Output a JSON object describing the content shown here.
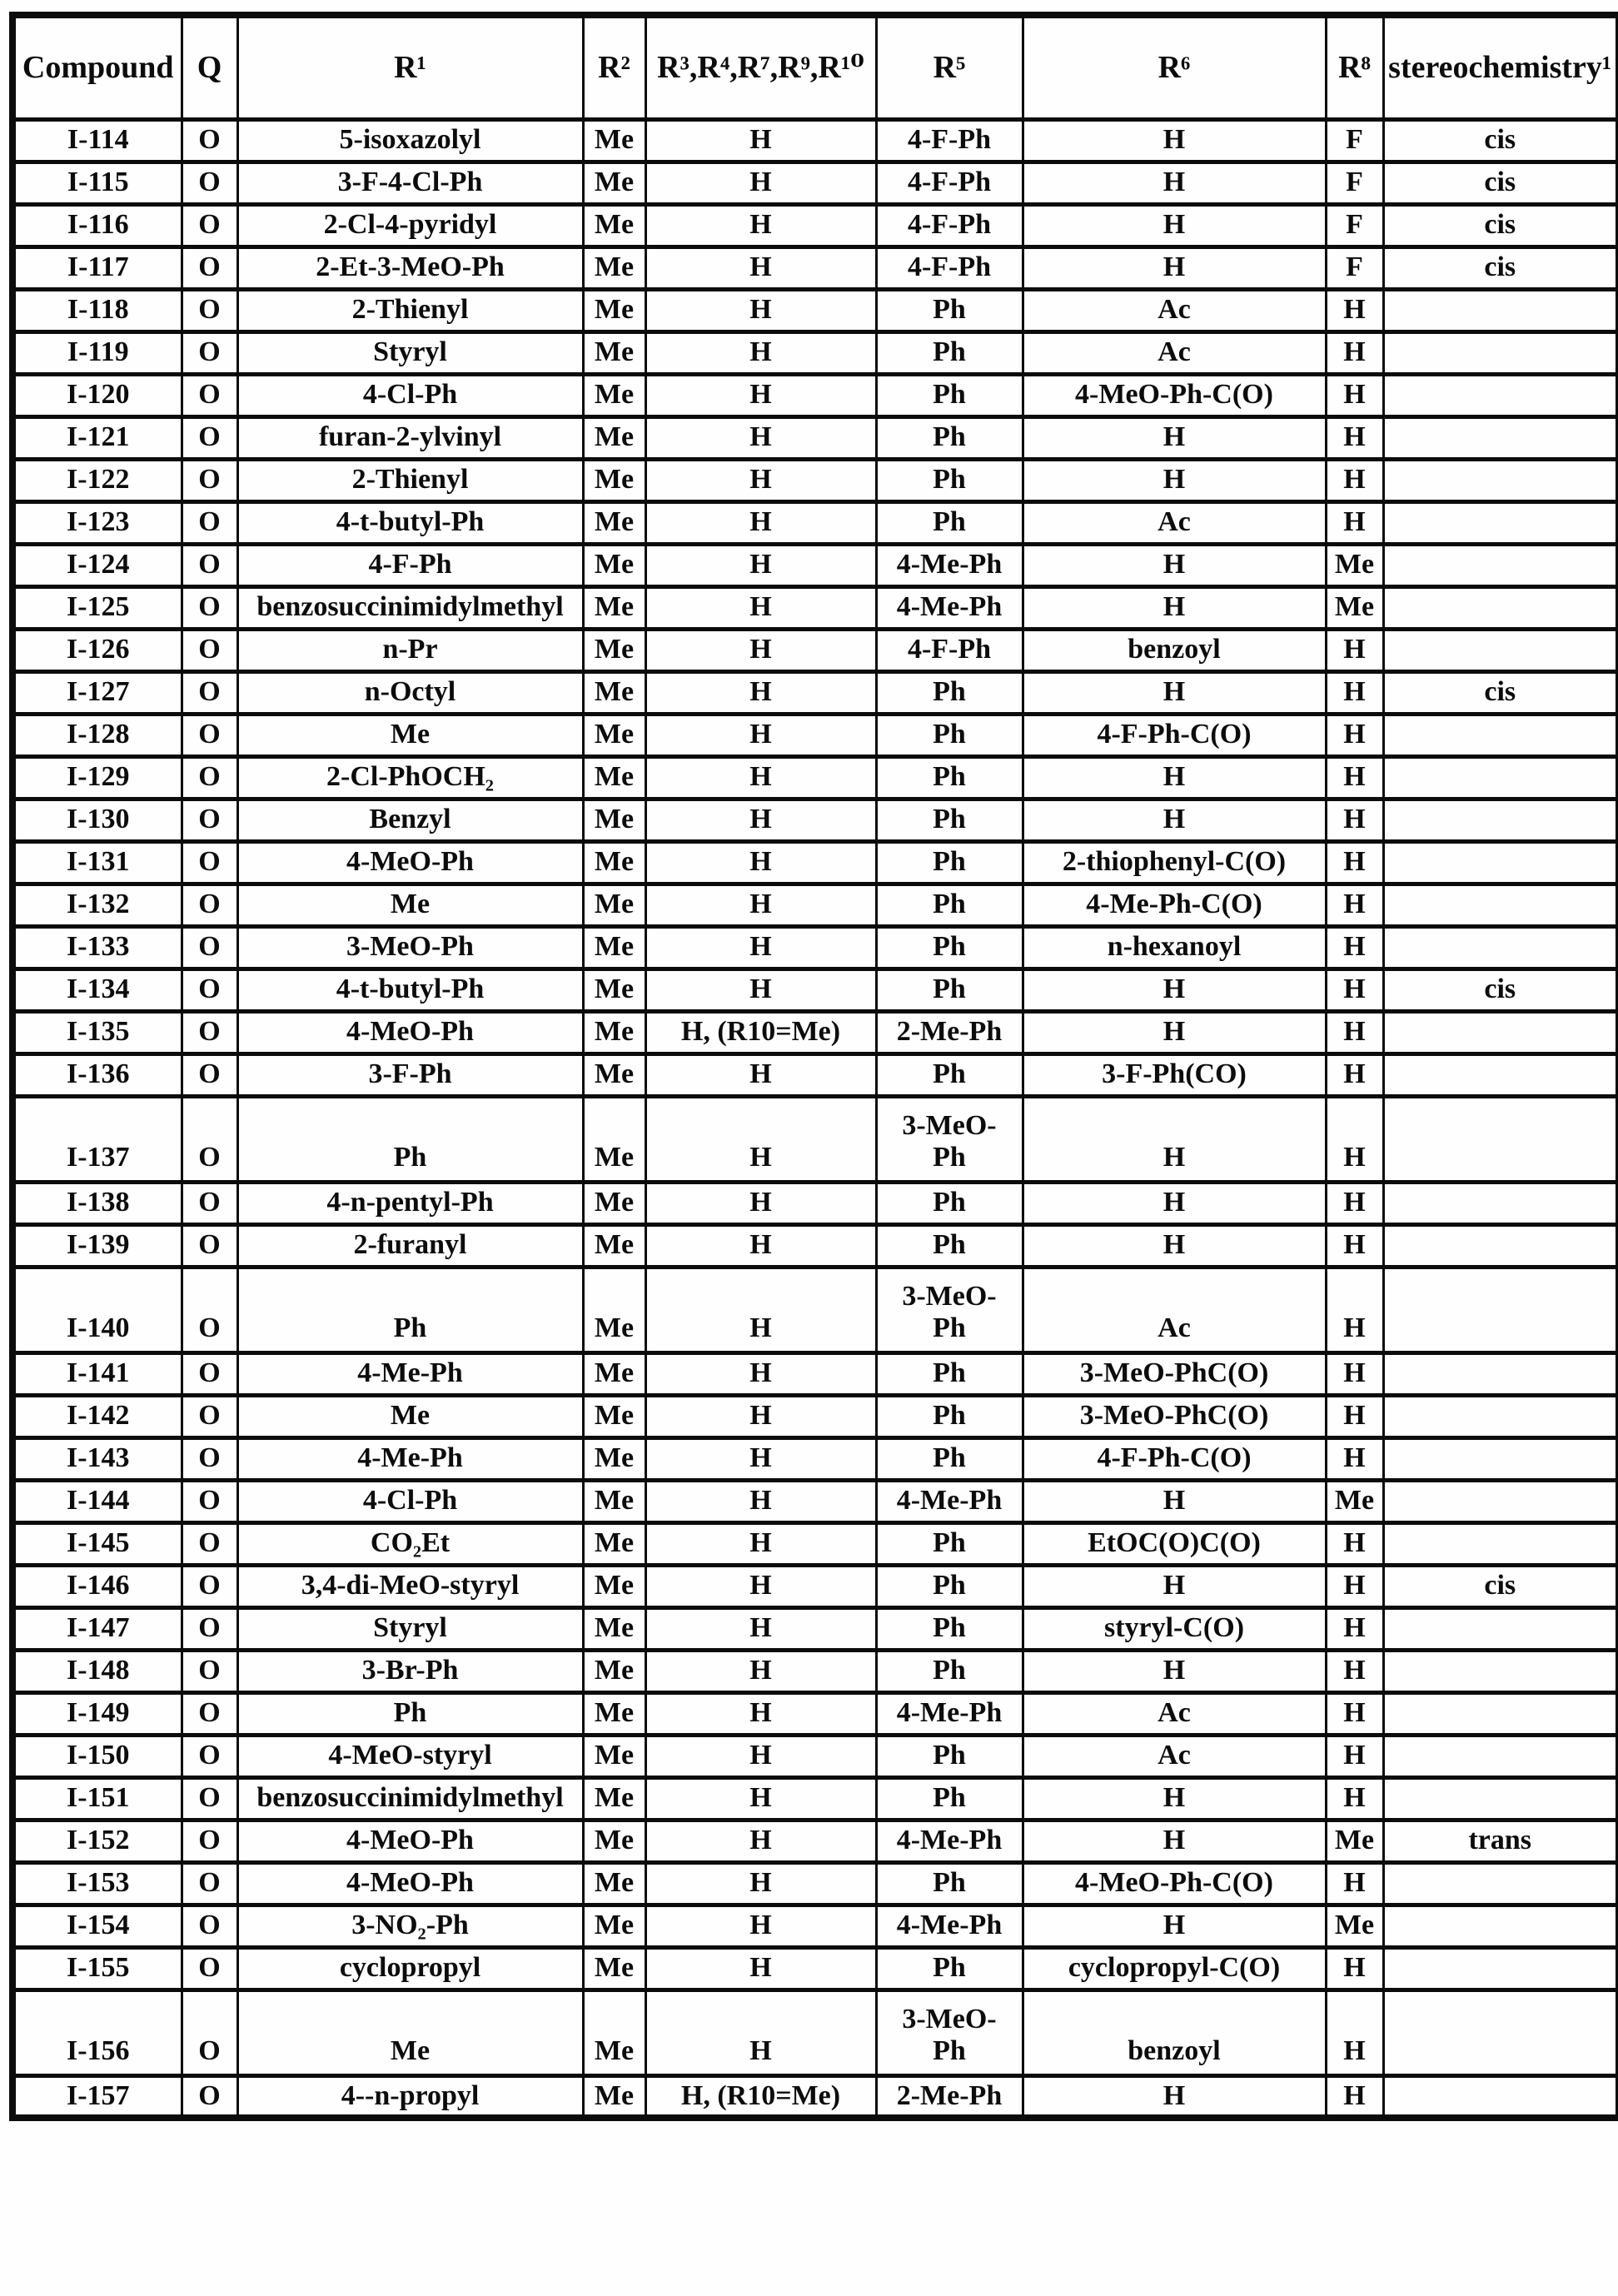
{
  "page": {
    "background_color": "#fefefe",
    "ink_color": "#0c0c0c"
  },
  "table": {
    "columns": [
      {
        "key": "compound",
        "label": "Compound"
      },
      {
        "key": "q",
        "label": "Q"
      },
      {
        "key": "r1",
        "label": "R¹"
      },
      {
        "key": "r2",
        "label": "R²"
      },
      {
        "key": "r3-r4-r7-r9-r10",
        "label": "R³,R⁴,R⁷,R⁹,R¹⁰"
      },
      {
        "key": "r5",
        "label": "R⁵"
      },
      {
        "key": "r6",
        "label": "R⁶"
      },
      {
        "key": "r8",
        "label": "R⁸"
      },
      {
        "key": "stereochemistry",
        "label": "stereochemistry¹"
      }
    ],
    "rows": [
      {
        "tall": false,
        "cells": [
          "I-114",
          "O",
          "5-isoxazolyl",
          "Me",
          "H",
          "4-F-Ph",
          "H",
          "F",
          "cis"
        ]
      },
      {
        "tall": false,
        "cells": [
          "I-115",
          "O",
          "3-F-4-Cl-Ph",
          "Me",
          "H",
          "4-F-Ph",
          "H",
          "F",
          "cis"
        ]
      },
      {
        "tall": false,
        "cells": [
          "I-116",
          "O",
          "2-Cl-4-pyridyl",
          "Me",
          "H",
          "4-F-Ph",
          "H",
          "F",
          "cis"
        ]
      },
      {
        "tall": false,
        "cells": [
          "I-117",
          "O",
          "2-Et-3-MeO-Ph",
          "Me",
          "H",
          "4-F-Ph",
          "H",
          "F",
          "cis"
        ]
      },
      {
        "tall": false,
        "cells": [
          "I-118",
          "O",
          "2-Thienyl",
          "Me",
          "H",
          "Ph",
          "Ac",
          "H",
          ""
        ]
      },
      {
        "tall": false,
        "cells": [
          "I-119",
          "O",
          "Styryl",
          "Me",
          "H",
          "Ph",
          "Ac",
          "H",
          ""
        ]
      },
      {
        "tall": false,
        "cells": [
          "I-120",
          "O",
          "4-Cl-Ph",
          "Me",
          "H",
          "Ph",
          "4-MeO-Ph-C(O)",
          "H",
          ""
        ]
      },
      {
        "tall": false,
        "cells": [
          "I-121",
          "O",
          "furan-2-ylvinyl",
          "Me",
          "H",
          "Ph",
          "H",
          "H",
          ""
        ]
      },
      {
        "tall": false,
        "cells": [
          "I-122",
          "O",
          "2-Thienyl",
          "Me",
          "H",
          "Ph",
          "H",
          "H",
          ""
        ]
      },
      {
        "tall": false,
        "cells": [
          "I-123",
          "O",
          "4-t-butyl-Ph",
          "Me",
          "H",
          "Ph",
          "Ac",
          "H",
          ""
        ]
      },
      {
        "tall": false,
        "cells": [
          "I-124",
          "O",
          "4-F-Ph",
          "Me",
          "H",
          "4-Me-Ph",
          "H",
          "Me",
          ""
        ]
      },
      {
        "tall": false,
        "cells": [
          "I-125",
          "O",
          "benzosuccinimidylmethyl",
          "Me",
          "H",
          "4-Me-Ph",
          "H",
          "Me",
          ""
        ]
      },
      {
        "tall": false,
        "cells": [
          "I-126",
          "O",
          "n-Pr",
          "Me",
          "H",
          "4-F-Ph",
          "benzoyl",
          "H",
          ""
        ]
      },
      {
        "tall": false,
        "cells": [
          "I-127",
          "O",
          "n-Octyl",
          "Me",
          "H",
          "Ph",
          "H",
          "H",
          "cis"
        ]
      },
      {
        "tall": false,
        "cells": [
          "I-128",
          "O",
          "Me",
          "Me",
          "H",
          "Ph",
          "4-F-Ph-C(O)",
          "H",
          ""
        ]
      },
      {
        "tall": false,
        "cells": [
          "I-129",
          "O",
          "2-Cl-PhOCH₂",
          "Me",
          "H",
          "Ph",
          "H",
          "H",
          ""
        ]
      },
      {
        "tall": false,
        "cells": [
          "I-130",
          "O",
          "Benzyl",
          "Me",
          "H",
          "Ph",
          "H",
          "H",
          ""
        ]
      },
      {
        "tall": false,
        "cells": [
          "I-131",
          "O",
          "4-MeO-Ph",
          "Me",
          "H",
          "Ph",
          "2-thiophenyl-C(O)",
          "H",
          ""
        ]
      },
      {
        "tall": false,
        "cells": [
          "I-132",
          "O",
          "Me",
          "Me",
          "H",
          "Ph",
          "4-Me-Ph-C(O)",
          "H",
          ""
        ]
      },
      {
        "tall": false,
        "cells": [
          "I-133",
          "O",
          "3-MeO-Ph",
          "Me",
          "H",
          "Ph",
          "n-hexanoyl",
          "H",
          ""
        ]
      },
      {
        "tall": false,
        "cells": [
          "I-134",
          "O",
          "4-t-butyl-Ph",
          "Me",
          "H",
          "Ph",
          "H",
          "H",
          "cis"
        ]
      },
      {
        "tall": false,
        "cells": [
          "I-135",
          "O",
          "4-MeO-Ph",
          "Me",
          "H, (R10=Me)",
          "2-Me-Ph",
          "H",
          "H",
          ""
        ]
      },
      {
        "tall": false,
        "cells": [
          "I-136",
          "O",
          "3-F-Ph",
          "Me",
          "H",
          "Ph",
          "3-F-Ph(CO)",
          "H",
          ""
        ]
      },
      {
        "tall": true,
        "cells": [
          "I-137",
          "O",
          "Ph",
          "Me",
          "H",
          "3-MeO-\nPh",
          "H",
          "H",
          ""
        ]
      },
      {
        "tall": false,
        "cells": [
          "I-138",
          "O",
          "4-n-pentyl-Ph",
          "Me",
          "H",
          "Ph",
          "H",
          "H",
          ""
        ]
      },
      {
        "tall": false,
        "cells": [
          "I-139",
          "O",
          "2-furanyl",
          "Me",
          "H",
          "Ph",
          "H",
          "H",
          ""
        ]
      },
      {
        "tall": true,
        "cells": [
          "I-140",
          "O",
          "Ph",
          "Me",
          "H",
          "3-MeO-\nPh",
          "Ac",
          "H",
          ""
        ]
      },
      {
        "tall": false,
        "cells": [
          "I-141",
          "O",
          "4-Me-Ph",
          "Me",
          "H",
          "Ph",
          "3-MeO-PhC(O)",
          "H",
          ""
        ]
      },
      {
        "tall": false,
        "cells": [
          "I-142",
          "O",
          "Me",
          "Me",
          "H",
          "Ph",
          "3-MeO-PhC(O)",
          "H",
          ""
        ]
      },
      {
        "tall": false,
        "cells": [
          "I-143",
          "O",
          "4-Me-Ph",
          "Me",
          "H",
          "Ph",
          "4-F-Ph-C(O)",
          "H",
          ""
        ]
      },
      {
        "tall": false,
        "cells": [
          "I-144",
          "O",
          "4-Cl-Ph",
          "Me",
          "H",
          "4-Me-Ph",
          "H",
          "Me",
          ""
        ]
      },
      {
        "tall": false,
        "cells": [
          "I-145",
          "O",
          "CO₂Et",
          "Me",
          "H",
          "Ph",
          "EtOC(O)C(O)",
          "H",
          ""
        ]
      },
      {
        "tall": false,
        "cells": [
          "I-146",
          "O",
          "3,4-di-MeO-styryl",
          "Me",
          "H",
          "Ph",
          "H",
          "H",
          "cis"
        ]
      },
      {
        "tall": false,
        "cells": [
          "I-147",
          "O",
          "Styryl",
          "Me",
          "H",
          "Ph",
          "styryl-C(O)",
          "H",
          ""
        ]
      },
      {
        "tall": false,
        "cells": [
          "I-148",
          "O",
          "3-Br-Ph",
          "Me",
          "H",
          "Ph",
          "H",
          "H",
          ""
        ]
      },
      {
        "tall": false,
        "cells": [
          "I-149",
          "O",
          "Ph",
          "Me",
          "H",
          "4-Me-Ph",
          "Ac",
          "H",
          ""
        ]
      },
      {
        "tall": false,
        "cells": [
          "I-150",
          "O",
          "4-MeO-styryl",
          "Me",
          "H",
          "Ph",
          "Ac",
          "H",
          ""
        ]
      },
      {
        "tall": false,
        "cells": [
          "I-151",
          "O",
          "benzosuccinimidylmethyl",
          "Me",
          "H",
          "Ph",
          "H",
          "H",
          ""
        ]
      },
      {
        "tall": false,
        "cells": [
          "I-152",
          "O",
          "4-MeO-Ph",
          "Me",
          "H",
          "4-Me-Ph",
          "H",
          "Me",
          "trans"
        ]
      },
      {
        "tall": false,
        "cells": [
          "I-153",
          "O",
          "4-MeO-Ph",
          "Me",
          "H",
          "Ph",
          "4-MeO-Ph-C(O)",
          "H",
          ""
        ]
      },
      {
        "tall": false,
        "cells": [
          "I-154",
          "O",
          "3-NO₂-Ph",
          "Me",
          "H",
          "4-Me-Ph",
          "H",
          "Me",
          ""
        ]
      },
      {
        "tall": false,
        "cells": [
          "I-155",
          "O",
          "cyclopropyl",
          "Me",
          "H",
          "Ph",
          "cyclopropyl-C(O)",
          "H",
          ""
        ]
      },
      {
        "tall": true,
        "cells": [
          "I-156",
          "O",
          "Me",
          "Me",
          "H",
          "3-MeO-\nPh",
          "benzoyl",
          "H",
          ""
        ]
      },
      {
        "tall": false,
        "cells": [
          "I-157",
          "O",
          "4--n-propyl",
          "Me",
          "H, (R10=Me)",
          "2-Me-Ph",
          "H",
          "H",
          ""
        ]
      }
    ]
  }
}
